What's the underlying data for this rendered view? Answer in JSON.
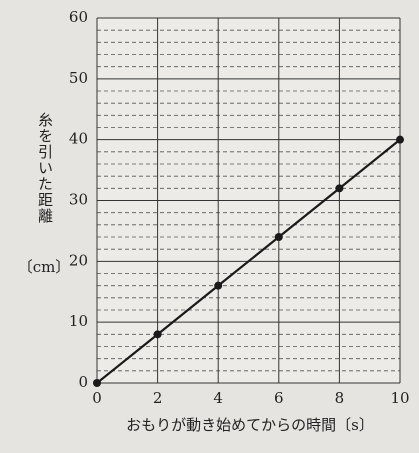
{
  "chart_data": {
    "type": "line",
    "x_label": "おもりが動き始めてからの時間〔s〕",
    "y_label": "糸を引いた距離",
    "y_unit": "〔cm〕",
    "x": [
      0,
      2,
      4,
      6,
      8,
      10
    ],
    "series": [
      {
        "color": "#1a1a1a",
        "values": [
          0,
          8,
          16,
          24,
          32,
          40
        ]
      }
    ],
    "xlim": [
      0,
      10
    ],
    "xticks": [
      0,
      2,
      4,
      6,
      8,
      10
    ],
    "ylim": [
      0,
      60
    ],
    "yticks": [
      0,
      10,
      20,
      30,
      40,
      50,
      60
    ],
    "yminorticks": [
      2,
      4,
      6,
      8,
      12,
      14,
      16,
      18,
      22,
      24,
      26,
      28,
      32,
      34,
      36,
      38,
      42,
      44,
      46,
      48,
      52,
      54,
      56,
      58
    ],
    "grid": true,
    "markers": true
  }
}
